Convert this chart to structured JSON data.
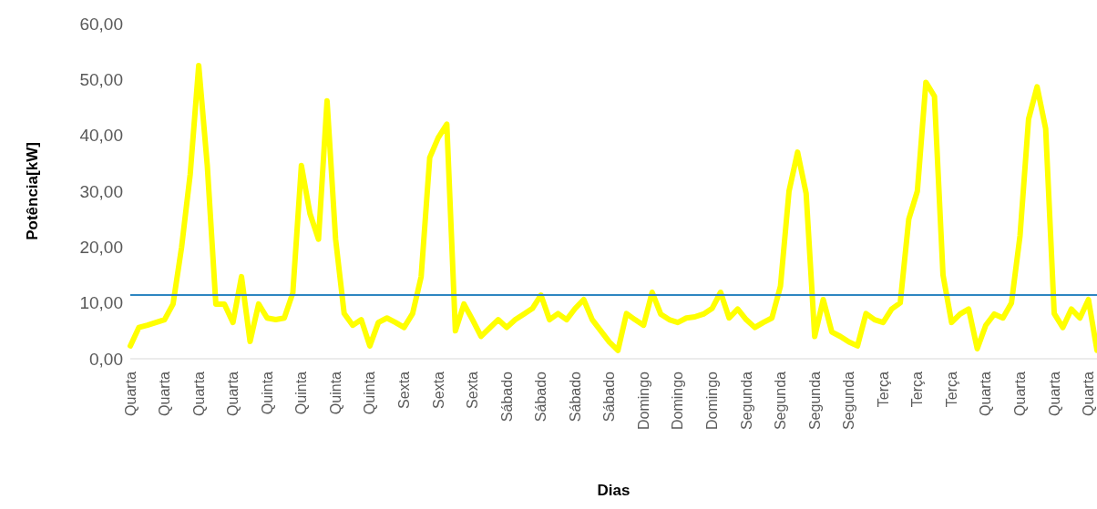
{
  "chart_data": {
    "type": "line",
    "xlabel": "Dias",
    "ylabel": "Potência[kW]",
    "categories": [
      "Quarta",
      null,
      null,
      null,
      "Quarta",
      null,
      null,
      null,
      "Quarta",
      null,
      null,
      null,
      "Quarta",
      null,
      null,
      null,
      "Quinta",
      null,
      null,
      null,
      "Quinta",
      null,
      null,
      null,
      "Quinta",
      null,
      null,
      null,
      "Quinta",
      null,
      null,
      null,
      "Sexta",
      null,
      null,
      null,
      "Sexta",
      null,
      null,
      null,
      "Sexta",
      null,
      null,
      null,
      "Sábado",
      null,
      null,
      null,
      "Sábado",
      null,
      null,
      null,
      "Sábado",
      null,
      null,
      null,
      "Sábado",
      null,
      null,
      null,
      "Domingo",
      null,
      null,
      null,
      "Domingo",
      null,
      null,
      null,
      "Domingo",
      null,
      null,
      null,
      "Segunda",
      null,
      null,
      null,
      "Segunda",
      null,
      null,
      null,
      "Segunda",
      null,
      null,
      null,
      "Segunda",
      null,
      null,
      null,
      "Terça",
      null,
      null,
      null,
      "Terça",
      null,
      null,
      null,
      "Terça",
      null,
      null,
      null,
      "Quarta",
      null,
      null,
      null,
      "Quarta",
      null,
      null,
      null,
      "Quarta",
      null,
      null,
      null,
      "Quarta",
      null
    ],
    "ylim": [
      0,
      60
    ],
    "yticks": [
      {
        "value": 0,
        "label": "0,00"
      },
      {
        "value": 10,
        "label": "10,00"
      },
      {
        "value": 20,
        "label": "20,00"
      },
      {
        "value": 30,
        "label": "30,00"
      },
      {
        "value": 40,
        "label": "40,00"
      },
      {
        "value": 50,
        "label": "50,00"
      },
      {
        "value": 60,
        "label": "60,00"
      }
    ],
    "grid": false,
    "legend": false,
    "marker": "none",
    "line_style": "solid",
    "ref_lines": [
      {
        "axis": "y",
        "value": 11.4,
        "color": "#2e86c1"
      }
    ],
    "series": [
      {
        "color": "#ffff00",
        "values": [
          2.3,
          5.6,
          6,
          6.5,
          7,
          9.8,
          20,
          33,
          52.5,
          34.6,
          9.8,
          9.8,
          6.5,
          14.7,
          3.1,
          9.8,
          7.3,
          7,
          7.3,
          11.8,
          34.6,
          26,
          21.4,
          46.2,
          21.4,
          8.1,
          6,
          7,
          2.3,
          6.5,
          7.3,
          6.5,
          5.6,
          8.1,
          14.7,
          36,
          39.6,
          42,
          5,
          9.8,
          7,
          4,
          5.5,
          7,
          5.6,
          7,
          8,
          9,
          11.4,
          7,
          8.1,
          7,
          9,
          10.6,
          7,
          5,
          3,
          1.5,
          8.1,
          7,
          6,
          11.9,
          8,
          7,
          6.5,
          7.3,
          7.5,
          8,
          9,
          11.9,
          7.3,
          8.9,
          7,
          5.6,
          6.5,
          7.3,
          13,
          30,
          37,
          29.6,
          4,
          10.6,
          4.8,
          4,
          3,
          2.3,
          8.1,
          7,
          6.5,
          8.9,
          10,
          25,
          30,
          49.5,
          47,
          15,
          6.5,
          8,
          8.9,
          1.8,
          6,
          8,
          7.3,
          10,
          22,
          42.9,
          48.7,
          41.2,
          8.1,
          5.6,
          8.9,
          7.3,
          10.6,
          1.5
        ]
      }
    ]
  }
}
